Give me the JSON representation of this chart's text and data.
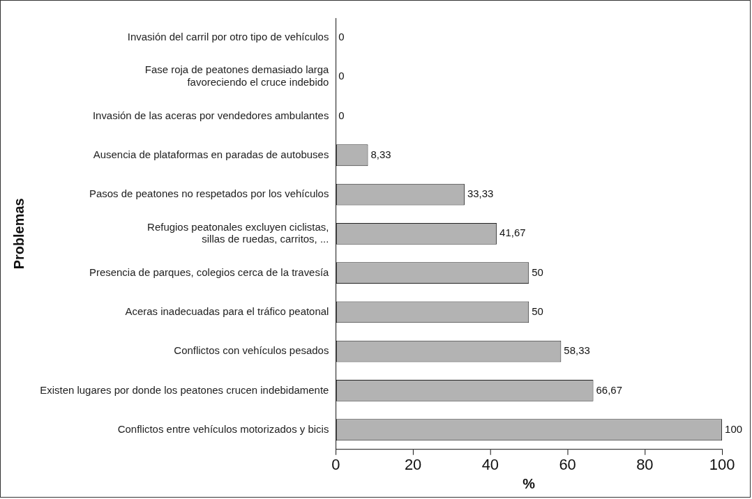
{
  "chart_data": {
    "type": "bar",
    "orientation": "horizontal",
    "xlabel": "%",
    "ylabel": "Problemas",
    "categories": [
      "Invasión del carril por otro tipo de vehículos",
      "Fase roja de peatones demasiado larga\nfavoreciendo el cruce indebido",
      "Invasión de las aceras por vendedores ambulantes",
      "Ausencia de plataformas en paradas de autobuses",
      "Pasos de peatones no respetados por los vehículos",
      "Refugios peatonales excluyen ciclistas,\nsillas de ruedas, carritos, ...",
      "Presencia de parques, colegios cerca de la travesía",
      "Aceras inadecuadas para el tráfico peatonal",
      "Conflictos con vehículos pesados",
      "Existen lugares por donde los peatones crucen indebidamente",
      "Conflictos entre vehículos motorizados y bicis"
    ],
    "values": [
      0,
      0,
      0,
      8.33,
      33.33,
      41.67,
      50,
      50,
      58.33,
      66.67,
      100
    ],
    "value_labels": [
      "0",
      "0",
      "0",
      "8,33",
      "33,33",
      "41,67",
      "50",
      "50",
      "58,33",
      "66,67",
      "100"
    ],
    "color": "#b3b3b3",
    "xlim": [
      0,
      100
    ],
    "xticks": [
      0,
      20,
      40,
      60,
      80,
      100
    ],
    "grid": false,
    "legend": false
  }
}
